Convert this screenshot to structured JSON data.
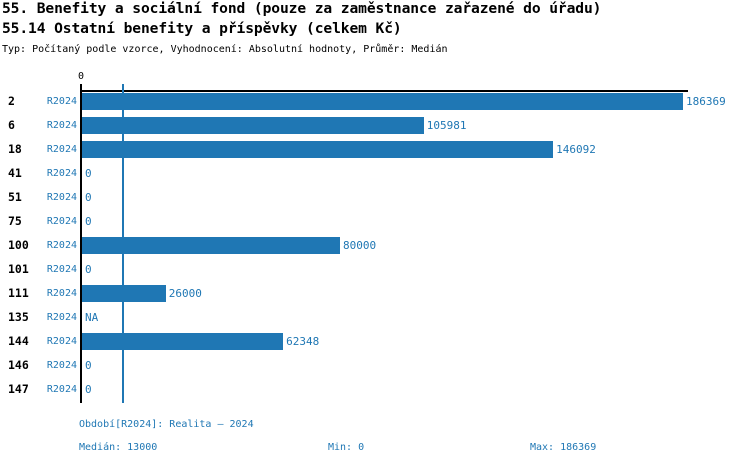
{
  "header": {
    "title": "55. Benefity a sociální fond (pouze za zaměstnance zařazené do úřadu)",
    "subtitle": "55.14 Ostatní benefity a příspěvky (celkem Kč)",
    "meta": "Typ: Počítaný podle vzorce, Vyhodnocení: Absolutní hodnoty, Průměr: Medián"
  },
  "chart_data": {
    "type": "bar",
    "orientation": "horizontal",
    "title": "55.14 Ostatní benefity a příspěvky (celkem Kč)",
    "categories": [
      "2",
      "6",
      "18",
      "41",
      "51",
      "75",
      "100",
      "101",
      "111",
      "135",
      "144",
      "146",
      "147"
    ],
    "series": [
      {
        "name": "R2024",
        "values": [
          186369,
          105981,
          146092,
          0,
          0,
          0,
          80000,
          0,
          26000,
          null,
          62348,
          0,
          0
        ],
        "value_labels": [
          "186369",
          "105981",
          "146092",
          "0",
          "0",
          "0",
          "80000",
          "0",
          "26000",
          "NA",
          "62348",
          "0",
          "0"
        ]
      }
    ],
    "xlim": [
      0,
      186369
    ],
    "x_tick_labels": [
      "0"
    ],
    "grid": false,
    "median_reference_line": 13000,
    "bar_color": "#1f77b4"
  },
  "footer": {
    "period": "Období[R2024]: Realita – 2024",
    "median": "Medián: 13000",
    "min": "Min: 0",
    "max": "Max: 186369"
  },
  "colors": {
    "accent": "#1f77b4",
    "text": "#000000",
    "background": "#ffffff"
  }
}
